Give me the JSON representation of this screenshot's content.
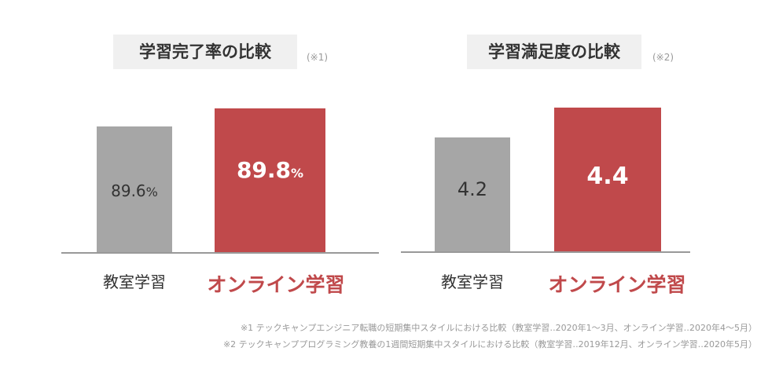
{
  "colors": {
    "baseline": "#a6a6a6",
    "online": "#c0494b",
    "axis": "#999999"
  },
  "charts": [
    {
      "title": "学習完了率の比較",
      "note": "(※1)",
      "unit": "%"
    },
    {
      "title": "学習満足度の比較",
      "note": "(※2)",
      "unit": ""
    }
  ],
  "chart_data": [
    {
      "type": "bar",
      "title": "学習完了率の比較",
      "categories": [
        "教室学習",
        "オンライン学習"
      ],
      "values": [
        89.6,
        89.8
      ],
      "labels": [
        "89.6",
        "89.8"
      ],
      "unit": "%"
    },
    {
      "type": "bar",
      "title": "学習満足度の比較",
      "categories": [
        "教室学習",
        "オンライン学習"
      ],
      "values": [
        4.2,
        4.4
      ],
      "labels": [
        "4.2",
        "4.4"
      ],
      "unit": ""
    }
  ],
  "footnotes": [
    "※1 テックキャンプエンジニア転職の短期集中スタイルにおける比較（教室学習‥2020年1〜3月、オンライン学習‥2020年4〜5月）",
    "※2 テックキャンププログラミング教養の1週間短期集中スタイルにおける比較（教室学習‥2019年12月、オンライン学習‥2020年5月）"
  ]
}
